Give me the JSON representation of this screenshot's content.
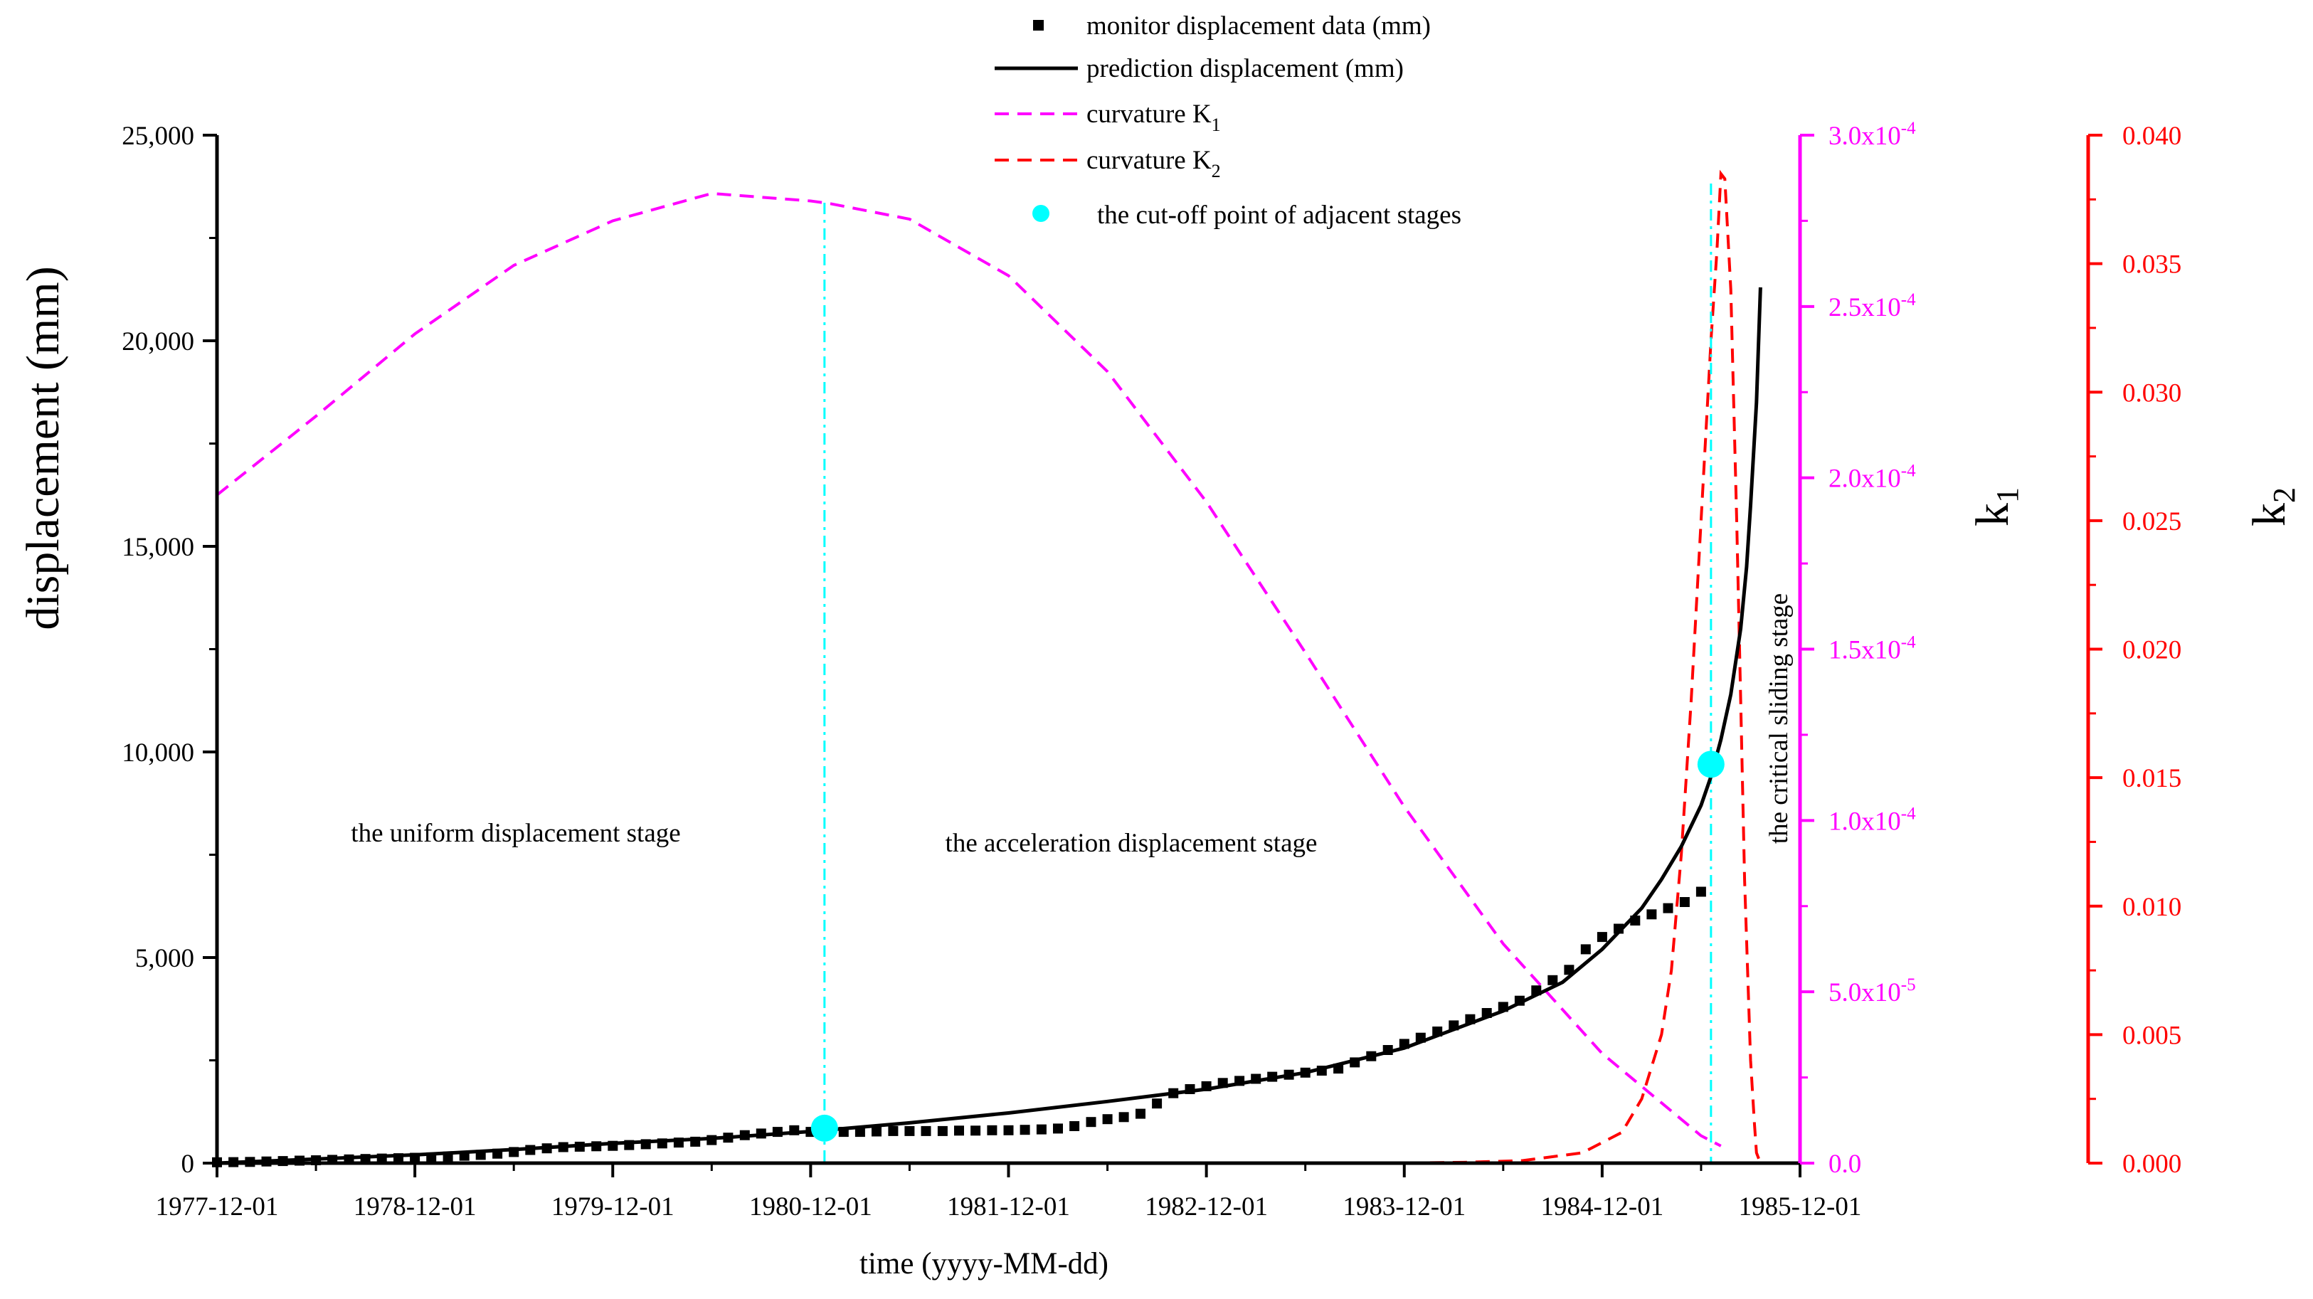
{
  "chart_data": {
    "type": "line",
    "title": "",
    "xlabel": "time (yyyy-MM-dd)",
    "x_ticks": [
      "1977-12-01",
      "1978-12-01",
      "1979-12-01",
      "1980-12-01",
      "1981-12-01",
      "1982-12-01",
      "1983-12-01",
      "1984-12-01",
      "1985-12-01"
    ],
    "x_range_years": [
      0,
      8
    ],
    "left_axis": {
      "label": "displacement (mm)",
      "range": [
        0,
        25000
      ],
      "ticks": [
        "0",
        "5,000",
        "10,000",
        "15,000",
        "20,000",
        "25,000"
      ],
      "tick_values": [
        0,
        5000,
        10000,
        15000,
        20000,
        25000
      ]
    },
    "k1_axis": {
      "label": "k",
      "subscript": "1",
      "color": "#ff00ff",
      "range": [
        0,
        0.0003
      ],
      "ticks": [
        {
          "v": 0,
          "mant": "0.0",
          "exp": ""
        },
        {
          "v": 5e-05,
          "mant": "5.0x10",
          "exp": "-5"
        },
        {
          "v": 0.0001,
          "mant": "1.0x10",
          "exp": "-4"
        },
        {
          "v": 0.00015,
          "mant": "1.5x10",
          "exp": "-4"
        },
        {
          "v": 0.0002,
          "mant": "2.0x10",
          "exp": "-4"
        },
        {
          "v": 0.00025,
          "mant": "2.5x10",
          "exp": "-4"
        },
        {
          "v": 0.0003,
          "mant": "3.0x10",
          "exp": "-4"
        }
      ]
    },
    "k2_axis": {
      "label": "k",
      "subscript": "2",
      "color": "#ff0000",
      "range": [
        0,
        0.04
      ],
      "ticks": [
        "0.000",
        "0.005",
        "0.010",
        "0.015",
        "0.020",
        "0.025",
        "0.030",
        "0.035",
        "0.040"
      ],
      "tick_values": [
        0,
        0.005,
        0.01,
        0.015,
        0.02,
        0.025,
        0.03,
        0.035,
        0.04
      ]
    },
    "series": [
      {
        "name": "monitor displacement data (mm)",
        "axis": "left",
        "style": "square-markers",
        "color": "#000000",
        "x": [
          0.0,
          0.083,
          0.167,
          0.25,
          0.333,
          0.417,
          0.5,
          0.583,
          0.667,
          0.75,
          0.833,
          0.917,
          1.0,
          1.083,
          1.167,
          1.25,
          1.333,
          1.417,
          1.5,
          1.583,
          1.667,
          1.75,
          1.833,
          1.917,
          2.0,
          2.083,
          2.167,
          2.25,
          2.333,
          2.417,
          2.5,
          2.583,
          2.667,
          2.75,
          2.833,
          2.917,
          3.0,
          3.083,
          3.167,
          3.25,
          3.333,
          3.417,
          3.5,
          3.583,
          3.667,
          3.75,
          3.833,
          3.917,
          4.0,
          4.083,
          4.167,
          4.25,
          4.333,
          4.417,
          4.5,
          4.583,
          4.667,
          4.75,
          4.833,
          4.917,
          5.0,
          5.083,
          5.167,
          5.25,
          5.333,
          5.417,
          5.5,
          5.583,
          5.667,
          5.75,
          5.833,
          5.917,
          6.0,
          6.083,
          6.167,
          6.25,
          6.333,
          6.417,
          6.5,
          6.583,
          6.667,
          6.75,
          6.833,
          6.917,
          7.0,
          7.083,
          7.167,
          7.25,
          7.333,
          7.417,
          7.5
        ],
        "y": [
          20,
          25,
          30,
          40,
          50,
          60,
          70,
          80,
          90,
          100,
          110,
          120,
          130,
          140,
          160,
          180,
          200,
          230,
          270,
          320,
          360,
          390,
          400,
          410,
          420,
          440,
          460,
          480,
          500,
          520,
          560,
          620,
          680,
          720,
          760,
          800,
          760,
          760,
          760,
          760,
          770,
          780,
          780,
          780,
          780,
          790,
          790,
          800,
          800,
          810,
          820,
          840,
          900,
          1000,
          1070,
          1120,
          1200,
          1450,
          1700,
          1800,
          1870,
          1950,
          2000,
          2050,
          2100,
          2150,
          2200,
          2250,
          2300,
          2450,
          2600,
          2750,
          2900,
          3050,
          3200,
          3350,
          3500,
          3650,
          3800,
          3950,
          4200,
          4450,
          4700,
          5200,
          5500,
          5700,
          5900,
          6050,
          6200,
          6350,
          6600
        ]
      },
      {
        "name": "prediction displacement (mm)",
        "axis": "left",
        "style": "solid",
        "color": "#000000",
        "x": [
          0,
          0.5,
          1,
          1.5,
          2,
          2.5,
          3,
          3.5,
          4,
          4.5,
          5,
          5.5,
          6,
          6.5,
          6.8,
          7.0,
          7.2,
          7.3,
          7.4,
          7.5,
          7.55,
          7.6,
          7.65,
          7.7,
          7.73,
          7.75,
          7.78,
          7.8
        ],
        "y": [
          0,
          100,
          200,
          330,
          480,
          600,
          770,
          980,
          1220,
          1500,
          1800,
          2200,
          2800,
          3700,
          4400,
          5200,
          6200,
          6900,
          7700,
          8700,
          9400,
          10300,
          11400,
          13000,
          14500,
          16000,
          18500,
          21300
        ]
      },
      {
        "name": "curvature K",
        "subscript": "1",
        "axis": "k1",
        "style": "dashed",
        "color": "#ff00ff",
        "x": [
          0,
          0.5,
          1,
          1.5,
          2,
          2.5,
          3,
          3.1,
          3.5,
          4,
          4.5,
          5,
          5.5,
          6,
          6.5,
          7,
          7.5,
          7.6
        ],
        "y": [
          0.000195,
          0.000218,
          0.000242,
          0.000262,
          0.000275,
          0.000283,
          0.0002808,
          0.00028,
          0.0002755,
          0.000259,
          0.000231,
          0.000193,
          0.000149,
          0.000104,
          6.4e-05,
          3.2e-05,
          8e-06,
          5e-06
        ]
      },
      {
        "name": "curvature K",
        "subscript": "2",
        "axis": "k2",
        "style": "dashed",
        "color": "#ff0000",
        "x": [
          5.9,
          6.3,
          6.6,
          6.9,
          7.1,
          7.2,
          7.3,
          7.35,
          7.4,
          7.45,
          7.5,
          7.55,
          7.58,
          7.6,
          7.62,
          7.65,
          7.68,
          7.7,
          7.72,
          7.75,
          7.77,
          7.78,
          7.8
        ],
        "y": [
          0.0,
          3e-05,
          0.0001,
          0.0004,
          0.0012,
          0.0025,
          0.005,
          0.0075,
          0.012,
          0.018,
          0.025,
          0.032,
          0.0355,
          0.0385,
          0.0383,
          0.034,
          0.025,
          0.018,
          0.011,
          0.004,
          0.0015,
          0.0004,
          0.0
        ]
      }
    ],
    "cutoff_points": {
      "name": "the cut-off point of adjacent stages",
      "color": "#00ffff",
      "points": [
        {
          "x": 3.07,
          "y": 850
        },
        {
          "x": 7.55,
          "y": 9700
        }
      ]
    },
    "stage_labels": [
      {
        "text": "the uniform displacement stage"
      },
      {
        "text": "the acceleration displacement stage"
      },
      {
        "text": "the critical sliding stage"
      }
    ],
    "legend_position": "top-center"
  }
}
